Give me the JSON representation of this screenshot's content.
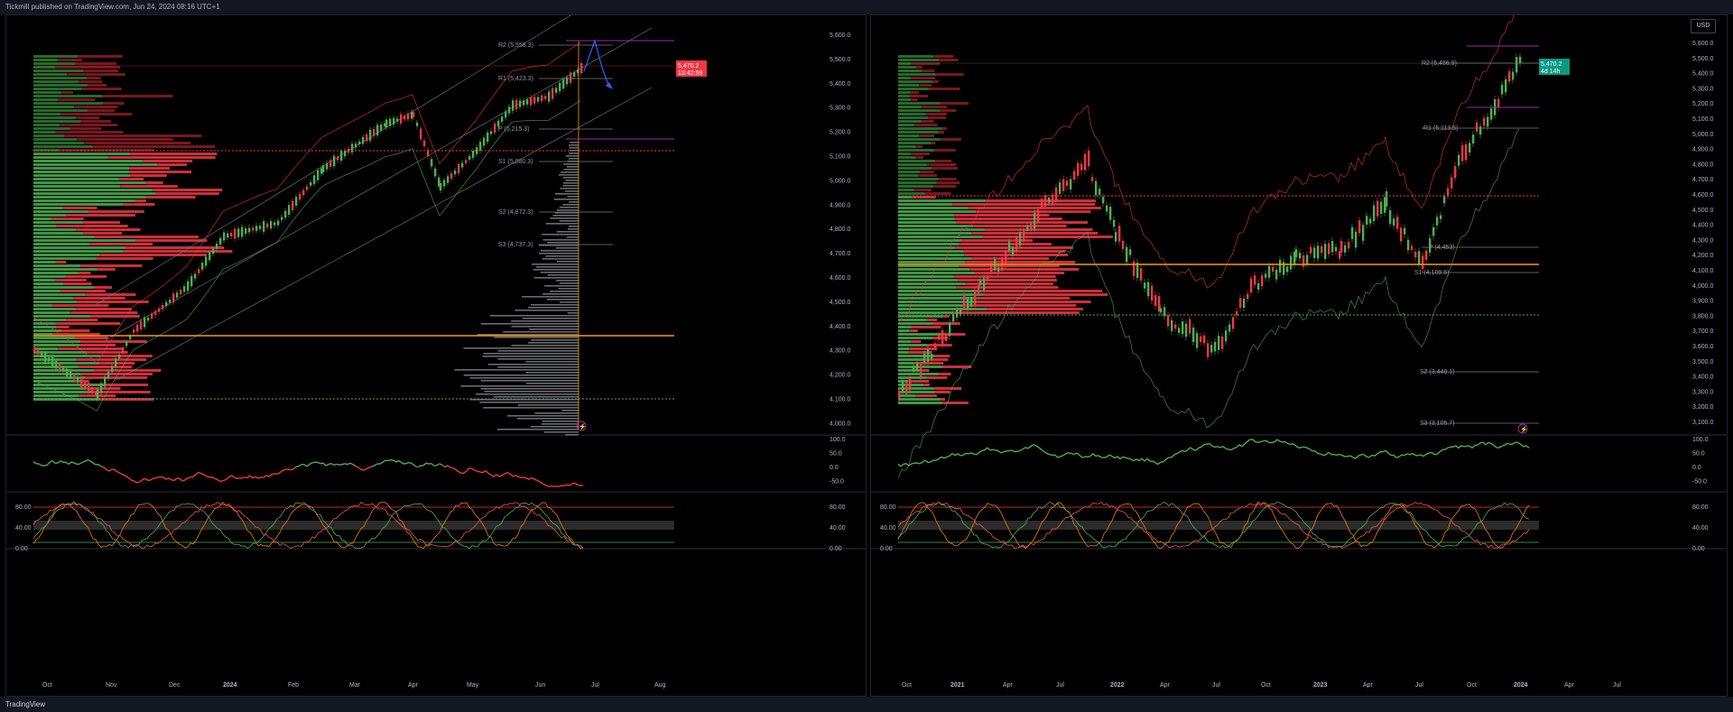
{
  "header": {
    "publisher_text": "Tickmill published on TradingView.com, Jun 24, 2024 08:16 UTC+1"
  },
  "footer": {
    "logo_text": "TradingView"
  },
  "colors": {
    "up": "#4caf50",
    "down": "#f23645",
    "orange": "#ff9800",
    "purple": "#9c27b0",
    "blue": "#2962ff",
    "grid": "#1e222d"
  },
  "left": {
    "price_axis": [
      "5,600.0",
      "5,500.0",
      "5,400.0",
      "5,300.0",
      "5,200.0",
      "5,100.0",
      "5,000.0",
      "4,900.0",
      "4,800.0",
      "4,700.0",
      "4,600.0",
      "4,500.0",
      "4,400.0",
      "4,300.0",
      "4,200.0",
      "4,100.0",
      "4,000.0"
    ],
    "pivots": [
      "R2 (5,558.3)",
      "R1 (5,423.3)",
      "P (5,215.3)",
      "S1 (5,080.3)",
      "S2 (4,872.3)",
      "S3 (4,737.3)"
    ],
    "last_price": "5,470.2",
    "countdown": "13:42:59",
    "rsi_axis": [
      "100.0",
      "50.0",
      "0.0",
      "-50.0"
    ],
    "stoch_axis": [
      "80.00",
      "40.00",
      "0.00"
    ],
    "stoch_axis_right": [
      "80.00",
      "40.00",
      "0.00"
    ],
    "time_axis": [
      "Oct",
      "Nov",
      "Dec",
      "2024",
      "Feb",
      "Mar",
      "Apr",
      "May",
      "Jun",
      "Jul",
      "Aug"
    ]
  },
  "right": {
    "currency_button": "USD",
    "price_axis": [
      "5,600.0",
      "5,500.0",
      "5,400.0",
      "5,300.0",
      "5,200.0",
      "5,100.0",
      "5,000.0",
      "4,900.0",
      "4,800.0",
      "4,700.0",
      "4,600.0",
      "4,500.0",
      "4,400.0",
      "4,300.0",
      "4,200.0",
      "4,100.0",
      "4,000.0",
      "3,900.0",
      "3,800.0",
      "3,700.0",
      "3,600.0",
      "3,500.0",
      "3,400.0",
      "3,300.0",
      "3,200.0",
      "3,100.0"
    ],
    "pivots": [
      "R2 (5,456.9)",
      "R1 (5,113.5)",
      "P (4,453)",
      "S1 (4,109.6)",
      "S2 (3,449.1)",
      "S3 (3,105.7)"
    ],
    "last_price": "5,470.2",
    "countdown": "4d 14h",
    "rsi_axis": [
      "100.0",
      "50.0",
      "0.0",
      "-50.0"
    ],
    "stoch_axis": [
      "80.00",
      "40.00",
      "0.00"
    ],
    "stoch_axis_right": [
      "80.00",
      "40.00",
      "0.00"
    ],
    "time_axis": [
      "Oct",
      "2021",
      "Apr",
      "Jul",
      "2022",
      "Apr",
      "Jul",
      "Oct",
      "2023",
      "Apr",
      "Jul",
      "Oct",
      "2024",
      "Apr",
      "Jul"
    ]
  }
}
